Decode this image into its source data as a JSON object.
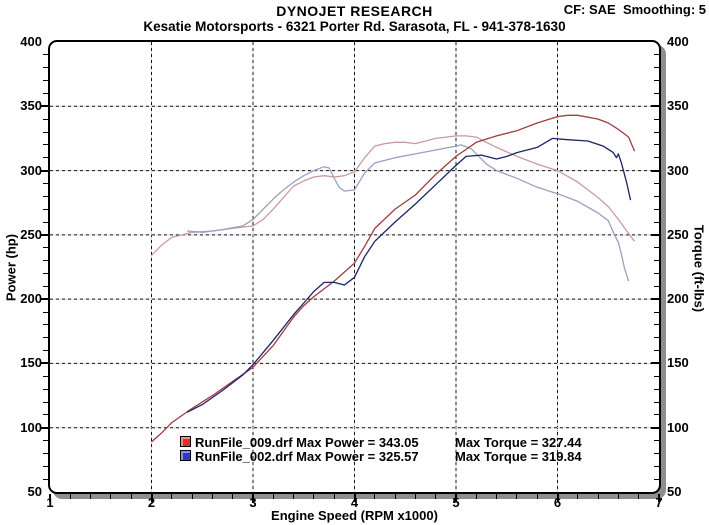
{
  "header": {
    "title": "DYNOJET RESEARCH",
    "cf_smoothing": "CF: SAE  Smoothing: 5",
    "subtitle": "Kesatie Motorsports - 6321 Porter Rd. Sarasota, FL - 941-378-1630"
  },
  "colors": {
    "background": "#ffffff",
    "border": "#000000",
    "shadow": "#8e8e8e",
    "grid_dash": "#151515",
    "grid_base": "#d9d9d9",
    "run009_power": "#a23a3e",
    "run009_torque": "#c99aa2",
    "run002_power": "#1c2366",
    "run002_torque": "#99a1c2",
    "legend_swatch_run009": "#e0302e",
    "legend_swatch_run002": "#3432da"
  },
  "chart_data": {
    "type": "line",
    "title": "DYNOJET RESEARCH",
    "xlabel": "Engine Speed (RPM x1000)",
    "ylabel_left": "Power (hp)",
    "ylabel_right": "Torque (ft-lbs)",
    "xlim": [
      1,
      7
    ],
    "ylim": [
      50,
      400
    ],
    "x_ticks": [
      1,
      2,
      3,
      4,
      5,
      6,
      7
    ],
    "y_ticks": [
      50,
      100,
      150,
      200,
      250,
      300,
      350,
      400
    ],
    "x_minor_step": 0.2,
    "y_minor_step": 10,
    "grid": "dashed gridlines at each major tick, both axes",
    "legend_position": "inside bottom-left",
    "series": [
      {
        "name": "RunFile_009.drf Torque",
        "run": "RunFile_009.drf",
        "quantity": "torque (ft-lbs)",
        "color_key": "run009_torque",
        "points": [
          [
            2.0,
            234
          ],
          [
            2.1,
            242
          ],
          [
            2.2,
            248
          ],
          [
            2.3,
            250
          ],
          [
            2.4,
            252
          ],
          [
            2.6,
            253
          ],
          [
            2.8,
            255
          ],
          [
            3.0,
            257
          ],
          [
            3.1,
            262
          ],
          [
            3.2,
            270
          ],
          [
            3.3,
            279
          ],
          [
            3.4,
            288
          ],
          [
            3.5,
            292
          ],
          [
            3.6,
            295
          ],
          [
            3.7,
            296
          ],
          [
            3.8,
            295
          ],
          [
            3.9,
            296
          ],
          [
            4.0,
            299
          ],
          [
            4.1,
            310
          ],
          [
            4.2,
            319
          ],
          [
            4.3,
            321
          ],
          [
            4.4,
            322
          ],
          [
            4.5,
            322
          ],
          [
            4.6,
            321
          ],
          [
            4.8,
            325
          ],
          [
            5.0,
            327
          ],
          [
            5.1,
            327
          ],
          [
            5.2,
            326
          ],
          [
            5.3,
            322
          ],
          [
            5.4,
            318
          ],
          [
            5.6,
            311
          ],
          [
            5.8,
            305
          ],
          [
            6.0,
            300
          ],
          [
            6.2,
            291
          ],
          [
            6.4,
            279
          ],
          [
            6.5,
            272
          ],
          [
            6.6,
            262
          ],
          [
            6.7,
            251
          ],
          [
            6.76,
            245
          ]
        ]
      },
      {
        "name": "RunFile_002.drf Torque",
        "run": "RunFile_002.drf",
        "quantity": "torque (ft-lbs)",
        "color_key": "run002_torque",
        "points": [
          [
            2.35,
            253
          ],
          [
            2.5,
            252
          ],
          [
            2.7,
            254
          ],
          [
            2.9,
            257
          ],
          [
            3.0,
            262
          ],
          [
            3.2,
            278
          ],
          [
            3.3,
            285
          ],
          [
            3.4,
            291
          ],
          [
            3.5,
            296
          ],
          [
            3.6,
            300
          ],
          [
            3.7,
            303
          ],
          [
            3.75,
            302
          ],
          [
            3.8,
            294
          ],
          [
            3.85,
            287
          ],
          [
            3.9,
            284
          ],
          [
            4.0,
            285
          ],
          [
            4.1,
            298
          ],
          [
            4.2,
            306
          ],
          [
            4.4,
            310
          ],
          [
            4.6,
            313
          ],
          [
            4.8,
            316
          ],
          [
            5.0,
            319
          ],
          [
            5.05,
            320
          ],
          [
            5.15,
            317
          ],
          [
            5.2,
            313
          ],
          [
            5.3,
            305
          ],
          [
            5.4,
            300
          ],
          [
            5.6,
            294
          ],
          [
            5.8,
            287
          ],
          [
            6.0,
            282
          ],
          [
            6.2,
            276
          ],
          [
            6.4,
            267
          ],
          [
            6.5,
            261
          ],
          [
            6.55,
            252
          ],
          [
            6.6,
            244
          ],
          [
            6.63,
            235
          ],
          [
            6.66,
            224
          ],
          [
            6.7,
            214
          ]
        ]
      },
      {
        "name": "RunFile_009.drf Power",
        "run": "RunFile_009.drf",
        "quantity": "power (hp)",
        "color_key": "run009_power",
        "points": [
          [
            2.0,
            89
          ],
          [
            2.1,
            96
          ],
          [
            2.2,
            104
          ],
          [
            2.4,
            115
          ],
          [
            2.6,
            125
          ],
          [
            2.8,
            136
          ],
          [
            3.0,
            147
          ],
          [
            3.2,
            164
          ],
          [
            3.4,
            186
          ],
          [
            3.5,
            195
          ],
          [
            3.6,
            202
          ],
          [
            3.8,
            214
          ],
          [
            4.0,
            228
          ],
          [
            4.1,
            241
          ],
          [
            4.2,
            255
          ],
          [
            4.4,
            270
          ],
          [
            4.6,
            281
          ],
          [
            4.8,
            297
          ],
          [
            5.0,
            311
          ],
          [
            5.2,
            322
          ],
          [
            5.4,
            327
          ],
          [
            5.6,
            331
          ],
          [
            5.8,
            337
          ],
          [
            6.0,
            342
          ],
          [
            6.1,
            343
          ],
          [
            6.2,
            343
          ],
          [
            6.4,
            340
          ],
          [
            6.5,
            337
          ],
          [
            6.6,
            332
          ],
          [
            6.7,
            326
          ],
          [
            6.76,
            315
          ]
        ]
      },
      {
        "name": "RunFile_002.drf Power",
        "run": "RunFile_002.drf",
        "quantity": "power (hp)",
        "color_key": "run002_power",
        "points": [
          [
            2.35,
            112
          ],
          [
            2.5,
            118
          ],
          [
            2.7,
            129
          ],
          [
            2.9,
            141
          ],
          [
            3.0,
            149
          ],
          [
            3.2,
            168
          ],
          [
            3.4,
            188
          ],
          [
            3.5,
            197
          ],
          [
            3.6,
            206
          ],
          [
            3.7,
            213
          ],
          [
            3.8,
            213
          ],
          [
            3.9,
            211
          ],
          [
            4.0,
            217
          ],
          [
            4.1,
            233
          ],
          [
            4.2,
            245
          ],
          [
            4.4,
            260
          ],
          [
            4.6,
            274
          ],
          [
            4.8,
            289
          ],
          [
            5.0,
            304
          ],
          [
            5.1,
            311
          ],
          [
            5.25,
            312
          ],
          [
            5.4,
            309
          ],
          [
            5.5,
            311
          ],
          [
            5.6,
            314
          ],
          [
            5.8,
            318
          ],
          [
            5.95,
            325
          ],
          [
            6.1,
            324
          ],
          [
            6.3,
            323
          ],
          [
            6.45,
            319
          ],
          [
            6.55,
            314
          ],
          [
            6.58,
            310
          ],
          [
            6.6,
            313
          ],
          [
            6.63,
            306
          ],
          [
            6.68,
            291
          ],
          [
            6.72,
            277
          ]
        ]
      }
    ],
    "legend": [
      {
        "file": "RunFile_009.drf",
        "max_power": 343.05,
        "max_torque": 327.44,
        "label": "RunFile_009.drf Max Power = 343.05",
        "torque_label": "Max Torque = 327.44",
        "swatch_key": "legend_swatch_run009"
      },
      {
        "file": "RunFile_002.drf",
        "max_power": 325.57,
        "max_torque": 319.84,
        "label": "RunFile_002.drf Max Power = 325.57",
        "torque_label": "Max Torque = 319.84",
        "swatch_key": "legend_swatch_run002"
      }
    ]
  }
}
